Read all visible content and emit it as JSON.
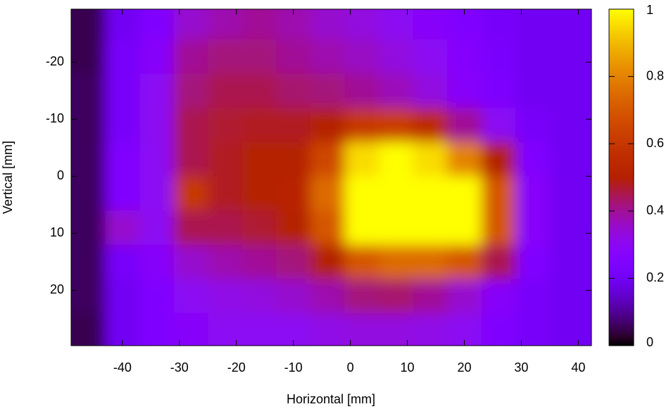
{
  "chart_data": {
    "type": "heatmap",
    "xlabel": "Horizontal [mm]",
    "ylabel": "Vertical [mm]",
    "x": [
      -46,
      -40,
      -34,
      -28,
      -22,
      -16,
      -10,
      -4,
      2,
      8,
      14,
      20,
      26,
      32,
      38
    ],
    "y": [
      -27,
      -21,
      -15,
      -9,
      -3,
      3,
      9,
      15,
      21,
      27
    ],
    "values": [
      [
        0.05,
        0.2,
        0.25,
        0.35,
        0.38,
        0.4,
        0.38,
        0.35,
        0.33,
        0.3,
        0.28,
        0.25,
        0.22,
        0.2,
        0.2
      ],
      [
        0.05,
        0.22,
        0.28,
        0.4,
        0.42,
        0.42,
        0.4,
        0.38,
        0.36,
        0.33,
        0.3,
        0.27,
        0.23,
        0.2,
        0.2
      ],
      [
        0.06,
        0.22,
        0.3,
        0.42,
        0.45,
        0.45,
        0.43,
        0.42,
        0.4,
        0.37,
        0.33,
        0.28,
        0.24,
        0.2,
        0.2
      ],
      [
        0.06,
        0.22,
        0.3,
        0.45,
        0.47,
        0.48,
        0.48,
        0.5,
        0.6,
        0.62,
        0.55,
        0.4,
        0.3,
        0.22,
        0.2
      ],
      [
        0.06,
        0.25,
        0.3,
        0.45,
        0.48,
        0.5,
        0.5,
        0.65,
        0.95,
        1,
        0.95,
        0.8,
        0.5,
        0.25,
        0.2
      ],
      [
        0.06,
        0.25,
        0.3,
        0.6,
        0.48,
        0.5,
        0.52,
        0.75,
        1,
        1,
        1,
        1,
        0.7,
        0.28,
        0.2
      ],
      [
        0.06,
        0.35,
        0.3,
        0.45,
        0.45,
        0.47,
        0.5,
        0.7,
        1,
        1,
        1,
        1,
        0.7,
        0.28,
        0.2
      ],
      [
        0.06,
        0.22,
        0.28,
        0.35,
        0.38,
        0.4,
        0.42,
        0.5,
        0.7,
        0.75,
        0.75,
        0.7,
        0.45,
        0.25,
        0.2
      ],
      [
        0.06,
        0.2,
        0.25,
        0.3,
        0.32,
        0.33,
        0.35,
        0.38,
        0.42,
        0.43,
        0.4,
        0.35,
        0.28,
        0.22,
        0.2
      ],
      [
        0.05,
        0.2,
        0.25,
        0.28,
        0.3,
        0.3,
        0.3,
        0.32,
        0.33,
        0.33,
        0.32,
        0.3,
        0.25,
        0.22,
        0.2
      ]
    ],
    "xlim": [
      -49,
      42.3
    ],
    "ylim": [
      -29.3,
      29.7
    ],
    "y_reversed": true,
    "xticks": [
      -40,
      -30,
      -20,
      -10,
      0,
      10,
      20,
      30,
      40
    ],
    "yticks": [
      -20,
      -10,
      0,
      10,
      20
    ],
    "zlim": [
      0,
      1
    ],
    "zticks": [
      0,
      0.2,
      0.4,
      0.6,
      0.8,
      1
    ],
    "palette": "gnuplot"
  }
}
